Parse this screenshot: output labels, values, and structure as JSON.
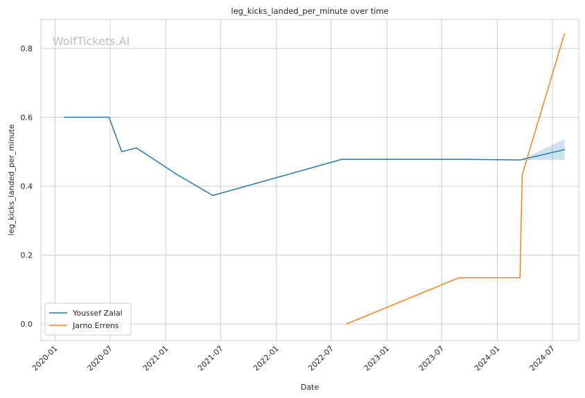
{
  "chart_data": {
    "type": "line",
    "title": "leg_kicks_landed_per_minute over time",
    "xlabel": "Date",
    "ylabel": "leg_kicks_landed_per_minute",
    "watermark": "WolfTickets.AI",
    "xlim": [
      "2019-11-15",
      "2024-09-26"
    ],
    "ylim": [
      -0.048,
      0.884
    ],
    "x_ticks": [
      "2020-01",
      "2020-07",
      "2021-01",
      "2021-07",
      "2022-01",
      "2022-07",
      "2023-01",
      "2023-07",
      "2024-01",
      "2024-07"
    ],
    "y_ticks": [
      0.0,
      0.2,
      0.4,
      0.6,
      0.8
    ],
    "y_tick_labels": [
      "0.0",
      "0.2",
      "0.4",
      "0.6",
      "0.8"
    ],
    "grid": true,
    "legend_position": "bottom-left",
    "series": [
      {
        "name": "Youssef Zalal",
        "color": "#1f77b4",
        "points": [
          [
            "2020-02-01",
            0.6
          ],
          [
            "2020-06-27",
            0.6
          ],
          [
            "2020-08-08",
            0.5
          ],
          [
            "2020-09-26",
            0.511
          ],
          [
            "2021-02-06",
            0.434
          ],
          [
            "2021-06-05",
            0.373
          ],
          [
            "2022-08-06",
            0.478
          ],
          [
            "2023-08-26",
            0.478
          ],
          [
            "2024-03-16",
            0.476
          ],
          [
            "2024-08-10",
            0.506
          ]
        ],
        "band": [
          [
            "2024-03-16",
            0.476,
            0.476
          ],
          [
            "2024-08-10",
            0.476,
            0.536
          ]
        ]
      },
      {
        "name": "Jarno Errens",
        "color": "#ff7f0e",
        "points": [
          [
            "2022-08-20",
            0.0
          ],
          [
            "2023-08-26",
            0.134
          ],
          [
            "2024-03-16",
            0.134
          ],
          [
            "2024-03-23",
            0.433
          ],
          [
            "2024-08-10",
            0.843
          ]
        ]
      }
    ]
  }
}
